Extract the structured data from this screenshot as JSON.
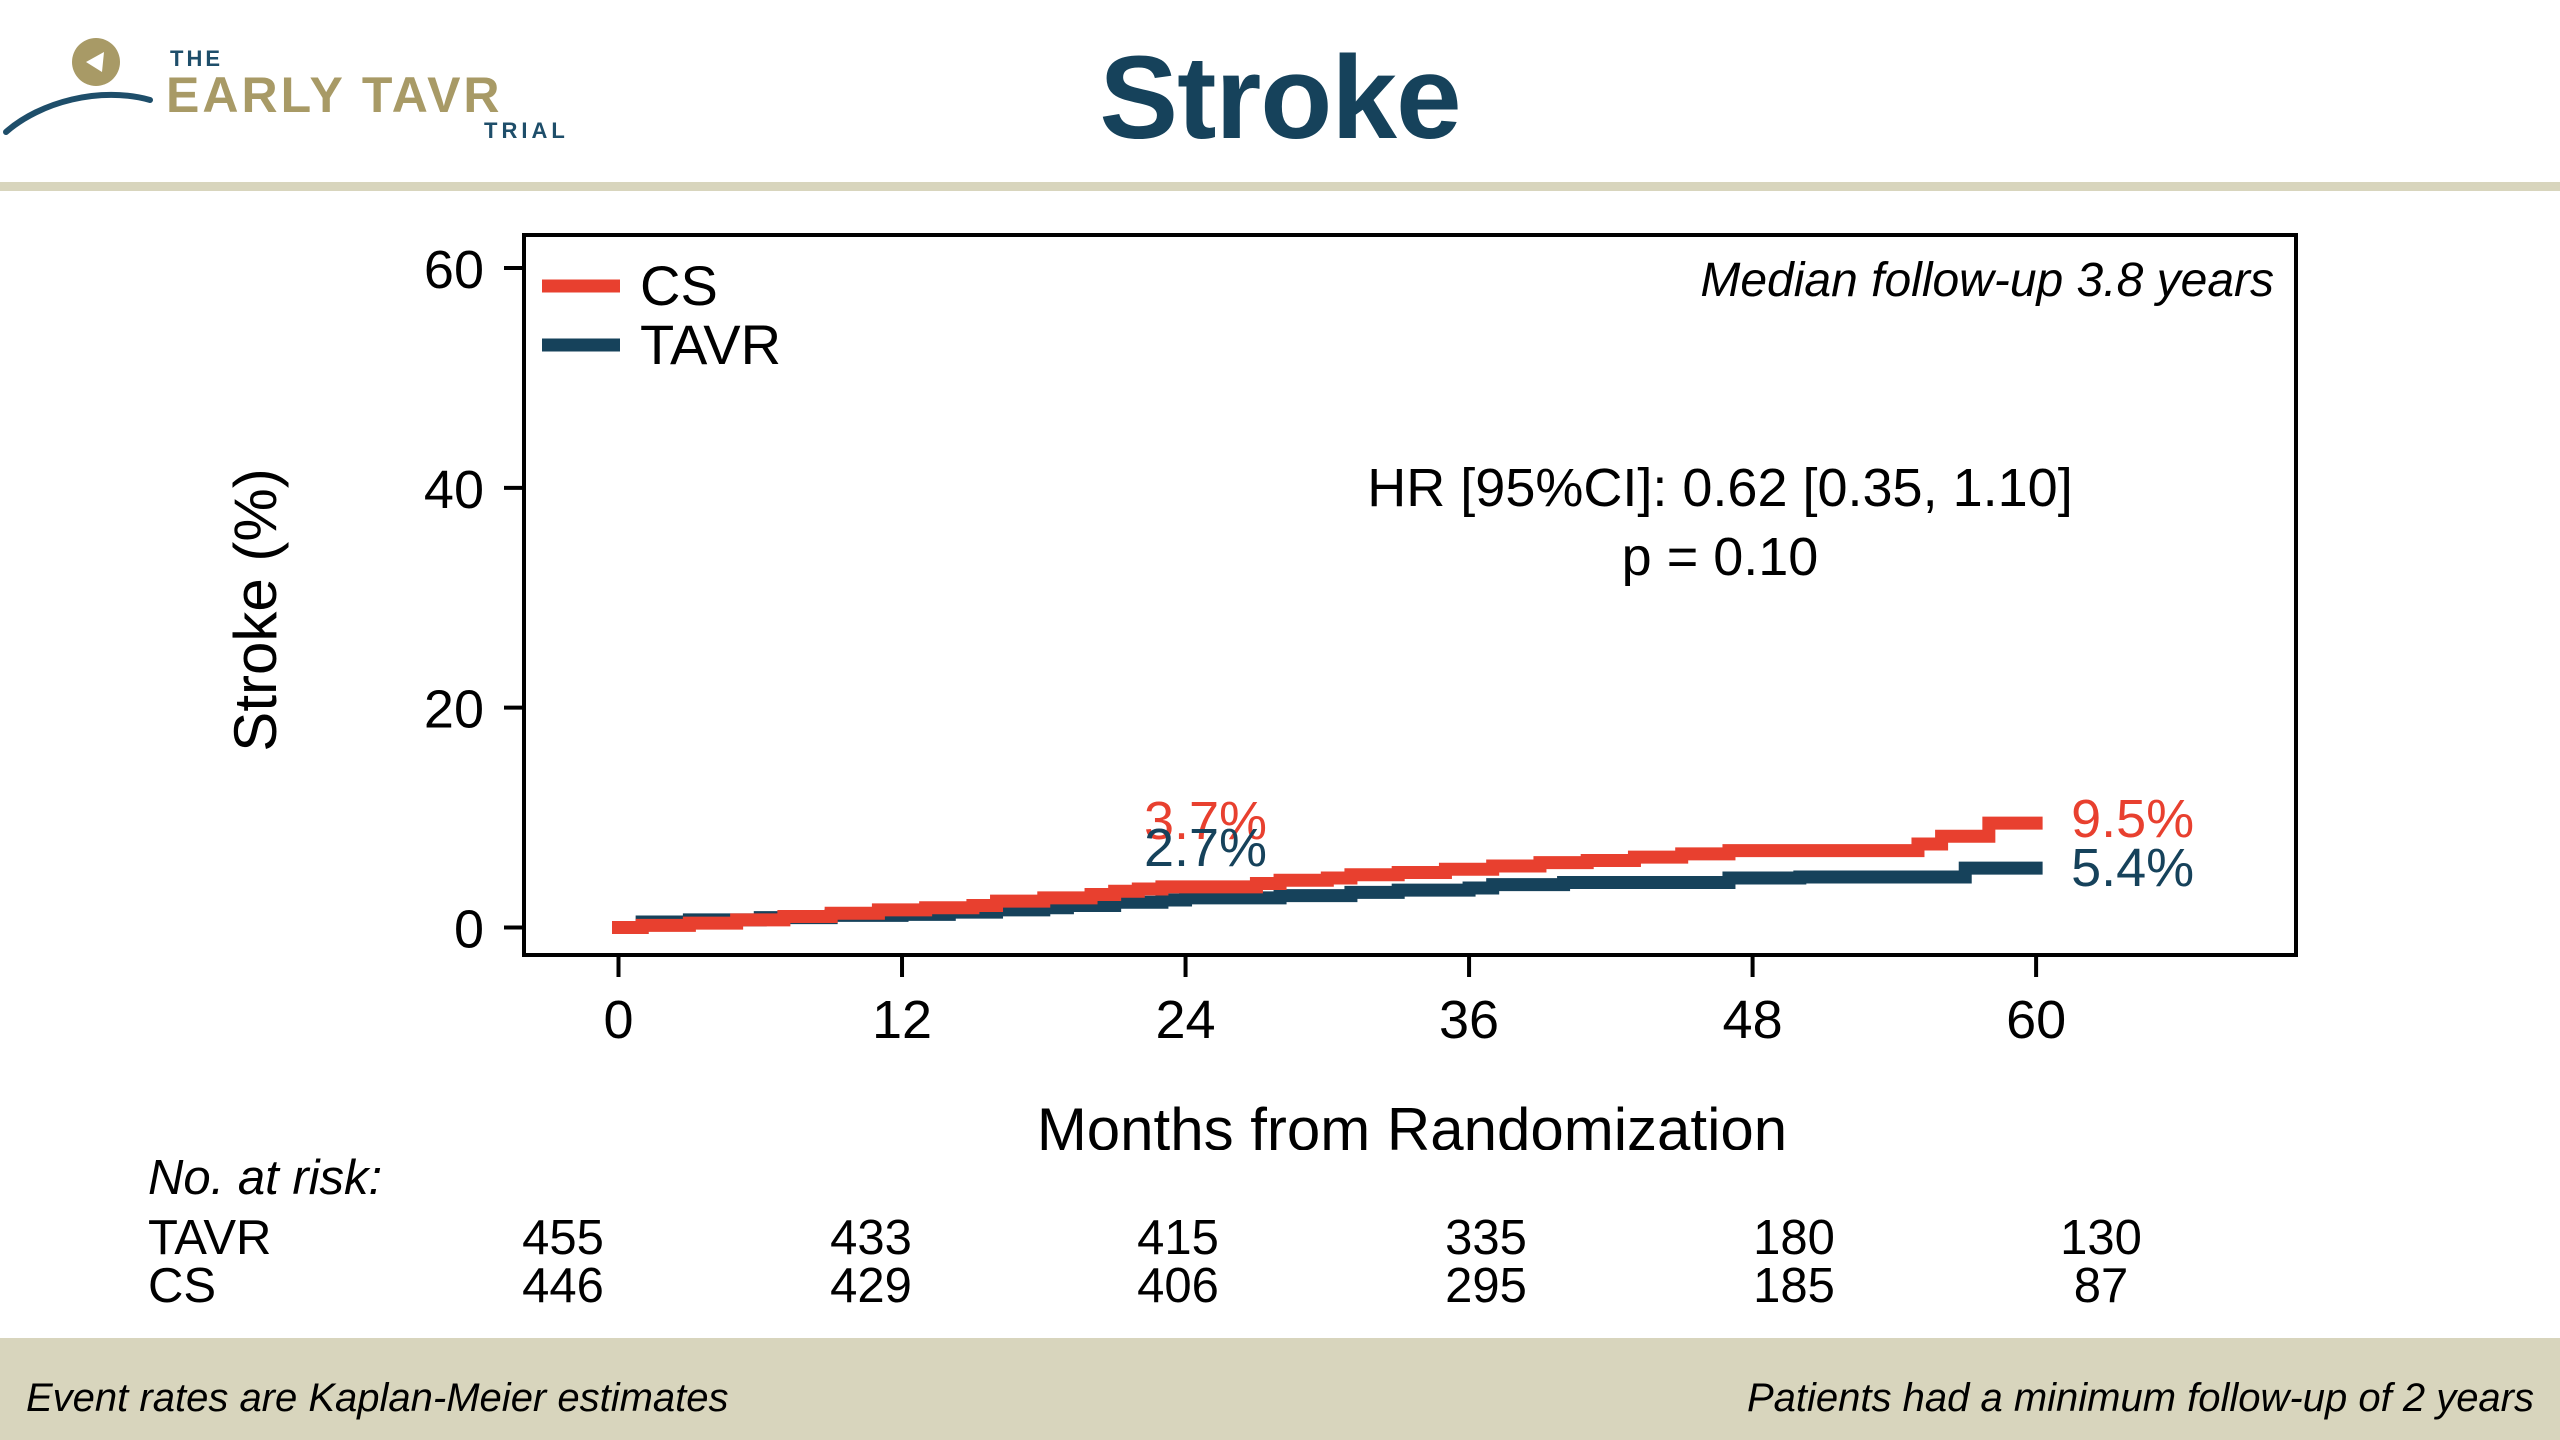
{
  "logo": {
    "line1": "THE",
    "line2": "EARLY TAVR",
    "line3": "TRIAL"
  },
  "slide_title": "Stroke",
  "chart_data": {
    "type": "line",
    "step": true,
    "title": "",
    "ylabel": "Stroke (%)",
    "xlabel": "Months from Randomization",
    "xlim": [
      -4,
      71
    ],
    "ylim": [
      -2.5,
      63
    ],
    "xticks": [
      0,
      12,
      24,
      36,
      48,
      60
    ],
    "yticks": [
      0,
      20,
      40,
      60
    ],
    "grid": false,
    "legend_position": "top-left",
    "series": [
      {
        "name": "CS",
        "color": "#e8402f",
        "x": [
          0,
          1,
          3,
          5,
          7,
          9,
          11,
          13,
          15,
          16,
          18,
          20,
          21,
          22,
          23,
          25,
          27,
          28,
          30,
          31,
          33,
          35,
          37,
          39,
          41,
          43,
          45,
          47,
          49,
          51,
          53,
          54,
          55,
          56,
          57,
          58,
          60
        ],
        "y": [
          0.0,
          0.2,
          0.4,
          0.7,
          1.0,
          1.3,
          1.6,
          1.8,
          2.0,
          2.4,
          2.7,
          3.0,
          3.3,
          3.5,
          3.7,
          3.7,
          4.0,
          4.3,
          4.5,
          4.8,
          5.0,
          5.3,
          5.6,
          5.9,
          6.1,
          6.4,
          6.7,
          7.0,
          7.0,
          7.0,
          7.0,
          7.0,
          7.6,
          8.3,
          8.3,
          9.5,
          9.5
        ]
      },
      {
        "name": "TAVR",
        "color": "#16425b",
        "x": [
          0,
          1,
          3,
          6,
          9,
          12,
          14,
          16,
          18,
          19,
          21,
          23,
          24,
          27,
          28,
          31,
          33,
          36,
          37,
          40,
          43,
          45,
          47,
          50,
          54,
          55,
          57,
          60
        ],
        "y": [
          0.0,
          0.5,
          0.7,
          0.9,
          1.1,
          1.2,
          1.4,
          1.6,
          1.8,
          2.0,
          2.3,
          2.5,
          2.7,
          2.7,
          2.9,
          3.2,
          3.4,
          3.6,
          3.9,
          4.1,
          4.1,
          4.1,
          4.5,
          4.6,
          4.6,
          4.6,
          5.4,
          5.4
        ]
      }
    ],
    "data_labels": [
      {
        "text": "3.7%",
        "series": "CS",
        "x": 24,
        "y": 3.7
      },
      {
        "text": "2.7%",
        "series": "TAVR",
        "x": 24,
        "y": 2.7
      },
      {
        "text": "9.5%",
        "series": "CS",
        "x": 60,
        "y": 9.5
      },
      {
        "text": "5.4%",
        "series": "TAVR",
        "x": 60,
        "y": 5.4
      }
    ],
    "annotations": {
      "median_followup": "Median follow-up 3.8 years",
      "hr_line": "HR [95%CI]: 0.62 [0.35, 1.10]",
      "p_line": "p = 0.10"
    }
  },
  "risk_table": {
    "heading": "No. at risk:",
    "timepoints": [
      0,
      12,
      24,
      36,
      48,
      60
    ],
    "rows": [
      {
        "label": "TAVR",
        "values": [
          "455",
          "433",
          "415",
          "335",
          "180",
          "130"
        ]
      },
      {
        "label": "CS",
        "values": [
          "446",
          "429",
          "406",
          "295",
          "185",
          "87"
        ]
      }
    ]
  },
  "footer": {
    "left": "Event rates are Kaplan-Meier estimates",
    "right": "Patients had a minimum follow-up of 2 years"
  }
}
